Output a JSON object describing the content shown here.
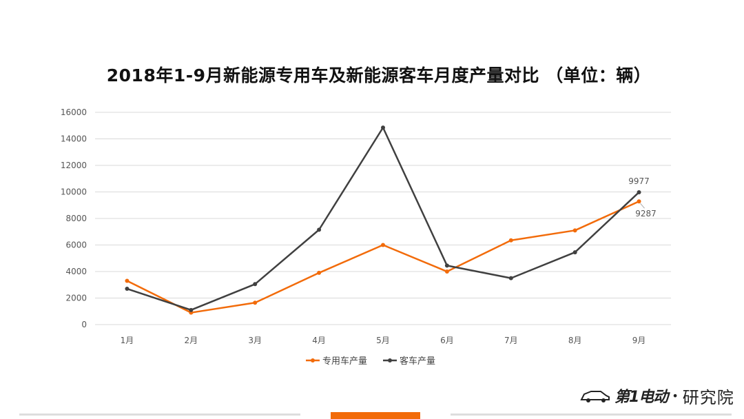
{
  "colors": {
    "series1": "#f26b0a",
    "series2": "#404040",
    "grid": "#d9d9d9",
    "accent": "#f26b0a"
  },
  "logo": {
    "brand": "第1电动",
    "separator": "•",
    "suffix": "研究院",
    "icon": "car-logo-icon"
  },
  "chart_data": {
    "type": "line",
    "title": "2018年1-9月新能源专用车及新能源客车月度产量对比 （单位：辆）",
    "categories": [
      "1月",
      "2月",
      "3月",
      "4月",
      "5月",
      "6月",
      "7月",
      "8月",
      "9月"
    ],
    "ylim": [
      0,
      16000
    ],
    "yticks": [
      0,
      2000,
      4000,
      6000,
      8000,
      10000,
      12000,
      14000,
      16000
    ],
    "grid": true,
    "legend_position": "bottom",
    "series": [
      {
        "name": "专用车产量",
        "values": [
          3300,
          900,
          1650,
          3900,
          6000,
          4000,
          6350,
          7100,
          9287
        ]
      },
      {
        "name": "客车产量",
        "values": [
          2700,
          1100,
          3050,
          7150,
          14850,
          4450,
          3500,
          5450,
          9977
        ]
      }
    ],
    "data_labels": [
      {
        "series": 1,
        "index": 8,
        "text": "9977"
      },
      {
        "series": 0,
        "index": 8,
        "text": "9287"
      }
    ]
  }
}
